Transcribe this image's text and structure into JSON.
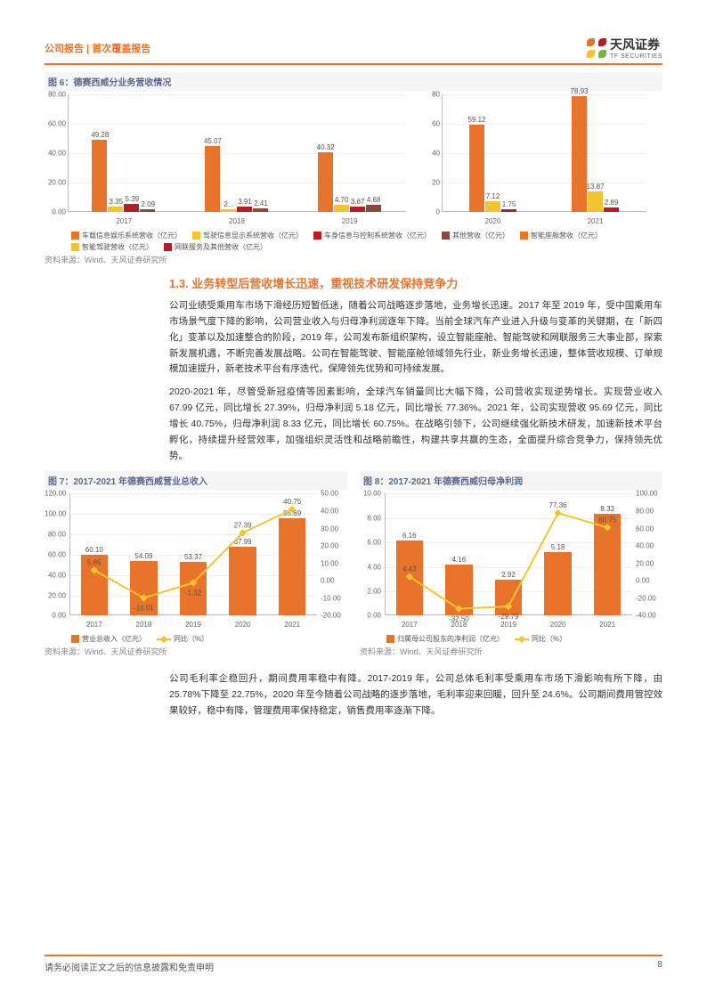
{
  "header": {
    "left": "公司报告 | 首次覆盖报告",
    "brand": "天风证券",
    "brand_sub": "TF SECURITIES"
  },
  "logo": {
    "colors": [
      "#e8732a",
      "#b81c22",
      "#f4c430",
      "#7fb041"
    ]
  },
  "fig6": {
    "title": "图 6：德赛西威分业务营收情况",
    "source": "资料来源：Wind、天风证券研究所",
    "left": {
      "type": "bar",
      "ylim": [
        0,
        80
      ],
      "yticks": [
        0,
        20,
        40,
        60,
        80
      ],
      "ylabels": [
        "0.00",
        "20.00",
        "40.00",
        "60.00",
        "80.00"
      ],
      "cats": [
        "2017",
        "2018",
        "2019"
      ],
      "series": [
        {
          "name": "车载信息娱乐系统营收（亿元）",
          "color": "#e8732a",
          "vals": [
            49.28,
            45.07,
            40.32
          ]
        },
        {
          "name": "驾驶信息显示系统营收（亿元）",
          "color": "#f4c430",
          "vals": [
            3.35,
            2.0,
            4.7
          ]
        },
        {
          "name": "车身信息与控制系统营收（亿元）",
          "color": "#b81c22",
          "vals": [
            5.39,
            3.91,
            3.67
          ]
        },
        {
          "name": "其他营收（亿元）",
          "color": "#8a4a3a",
          "vals": [
            2.09,
            2.41,
            4.68
          ]
        }
      ],
      "labels": [
        [
          "49.28",
          "3.35",
          "5.39",
          "2.09"
        ],
        [
          "45.07",
          "2...",
          "3.91",
          "2.41"
        ],
        [
          "40.32",
          "4.70",
          "3.67",
          "4.68"
        ]
      ]
    },
    "right": {
      "type": "bar",
      "ylim": [
        0,
        80
      ],
      "yticks": [
        0,
        20,
        40,
        60,
        80
      ],
      "cats": [
        "2020",
        "2021"
      ],
      "series": [
        {
          "name": "智能座舱营收（亿元）",
          "color": "#e8732a",
          "vals": [
            59.12,
            78.93
          ]
        },
        {
          "name": "智能驾驶营收（亿元）",
          "color": "#f4c430",
          "vals": [
            7.12,
            13.87
          ]
        },
        {
          "name": "网联服务及其他营收（亿元）",
          "color": "#b81c22",
          "vals": [
            1.75,
            2.89
          ]
        }
      ],
      "labels": [
        [
          "59.12",
          "7.12",
          "1.75"
        ],
        [
          "78.93",
          "13.87",
          "2.89"
        ]
      ]
    }
  },
  "section": {
    "heading": "1.3. 业务转型后营收增长迅速，重视技术研发保持竞争力",
    "p1": "公司业绩受乘用车市场下滑经历短暂低迷，随着公司战略逐步落地，业务增长迅速。2017 年至 2019 年，受中国乘用车市场景气度下降的影响，公司营业收入与归母净利润逐年下降。当前全球汽车产业进入升级与变革的关键期，在「新四化」变革以及加速整合的阶段，2019 年，公司发布新组织架构，设立智能座舱、智能驾驶和网联服务三大事业部，探索新发展机遇，不断完善发展战略。公司在智能驾驶、智能座舱领域领先行业，新业务增长迅速，整体营收规模、订单规模加速提升，新老技术平台有序迭代，保障领先优势和可持续发展。",
    "p2": "2020-2021 年，尽管受新冠疫情等因素影响，全球汽车销量同比大幅下降，公司营收实现逆势增长。实现营业收入 67.99 亿元，同比增长 27.39%，归母净利润 5.18 亿元，同比增长 77.36%。2021 年，公司实现营收 95.69 亿元，同比增长 40.75%，归母净利润 8.33 亿元，同比增长 60.75%。在战略引领下，公司继续强化新技术研发，加速新技术平台孵化，持续提升经营效率，加强组织灵活性和战略前瞻性，构建共享共赢的生态，全面提升综合竞争力，保持领先优势。"
  },
  "fig7": {
    "title": "图 7：2017-2021 年德赛西威营业总收入",
    "source": "资料来源：Wind、天风证券研究所",
    "type": "bar-line",
    "cats": [
      "2017",
      "2018",
      "2019",
      "2020",
      "2021"
    ],
    "ylim_l": [
      0,
      120
    ],
    "yticks_l": [
      0,
      20,
      40,
      60,
      80,
      100,
      120
    ],
    "ylabels_l": [
      "0.00",
      "20.00",
      "40.00",
      "60.00",
      "80.00",
      "100.00",
      "120.00"
    ],
    "ylim_r": [
      -20,
      50
    ],
    "yticks_r": [
      -20,
      -10,
      0,
      10,
      20,
      30,
      40,
      50
    ],
    "ylabels_r": [
      "-20.00",
      "-10.00",
      "0.00",
      "10.00",
      "20.00",
      "30.00",
      "40.00",
      "50.00"
    ],
    "bar": {
      "name": "营业总收入（亿元）",
      "color": "#e8732a",
      "vals": [
        60.1,
        54.09,
        53.37,
        67.99,
        95.69
      ],
      "labels": [
        "60.10",
        "54.09",
        "53.37",
        "67.99",
        "95.69"
      ]
    },
    "line": {
      "name": "同比（%）",
      "color": "#f4c430",
      "vals": [
        5.85,
        -10.01,
        -1.32,
        27.39,
        40.75
      ],
      "labels": [
        "5.85",
        "-10.01",
        "-1.32",
        "27.39",
        "40.75"
      ]
    }
  },
  "fig8": {
    "title": "图 8：2017-2021 年德赛西威归母净利润",
    "source": "资料来源：Wind、天风证券研究所",
    "type": "bar-line",
    "cats": [
      "2017",
      "2018",
      "2019",
      "2020",
      "2021"
    ],
    "ylim_l": [
      0,
      10
    ],
    "yticks_l": [
      0,
      2,
      4,
      6,
      8,
      10
    ],
    "ylabels_l": [
      "0.00",
      "2.00",
      "4.00",
      "6.00",
      "8.00",
      "10.00"
    ],
    "ylim_r": [
      -40,
      100
    ],
    "yticks_r": [
      -40,
      -20,
      0,
      20,
      40,
      60,
      80,
      100
    ],
    "ylabels_r": [
      "-40.00",
      "-20.00",
      "0.00",
      "20.00",
      "40.00",
      "60.00",
      "80.00",
      "100.00"
    ],
    "bar": {
      "name": "归属母公司股东的净利润（亿元）",
      "color": "#e8732a",
      "vals": [
        6.16,
        4.16,
        2.92,
        5.18,
        8.33
      ],
      "labels": [
        "6.16",
        "4.16",
        "2.92",
        "5.18",
        "8.33"
      ]
    },
    "line": {
      "name": "同比（%）",
      "color": "#f4c430",
      "vals": [
        4.43,
        -32.5,
        -29.79,
        77.36,
        60.75
      ],
      "labels": [
        "4.43",
        "-32.50",
        "-29.79",
        "77.36",
        "60.75"
      ]
    }
  },
  "p3": "公司毛利率企稳回升，期间费用率稳中有降。2017-2019 年，公司总体毛利率受乘用车市场下滑影响有所下降，由 25.78%下降至 22.75%，2020 年至今随着公司战略的逐步落地，毛利率迎来回暖，回升至 24.6%。公司期间费用管控效果较好，稳中有降，管理费用率保持稳定，销售费用率逐渐下降。",
  "footer": {
    "disclaimer": "请务必阅读正文之后的信息披露和免责申明",
    "page": "8"
  }
}
